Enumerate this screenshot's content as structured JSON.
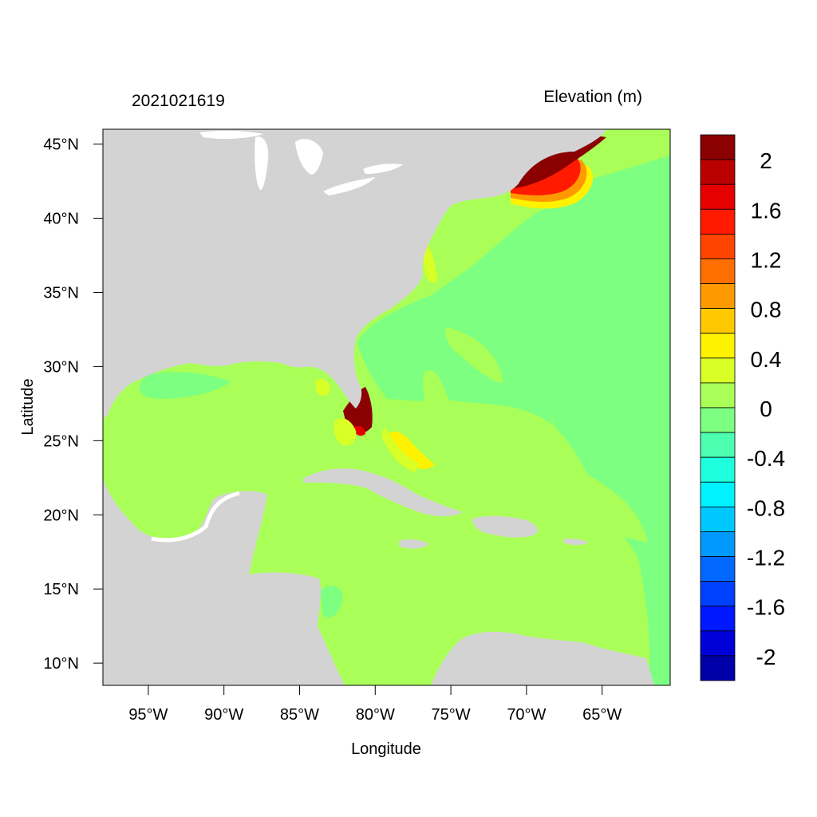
{
  "map": {
    "left_title": "2021021619",
    "right_title": "Elevation (m)",
    "xlabel": "Longitude",
    "ylabel": "Latitude",
    "x_ticks": [
      "95°W",
      "90°W",
      "85°W",
      "80°W",
      "75°W",
      "70°W",
      "65°W"
    ],
    "x_tick_values": [
      -95,
      -90,
      -85,
      -80,
      -75,
      -70,
      -65
    ],
    "y_ticks": [
      "45°N",
      "40°N",
      "35°N",
      "30°N",
      "25°N",
      "20°N",
      "15°N",
      "10°N"
    ],
    "y_tick_values": [
      45,
      40,
      35,
      30,
      25,
      20,
      15,
      10
    ],
    "lon_range": [
      -98,
      -60.5
    ],
    "lat_range": [
      8.5,
      46
    ],
    "land_color": "#d3d3d3",
    "ocean_base_color": "#a9ff57"
  },
  "colorbar": {
    "label_values": [
      "2",
      "1.6",
      "1.2",
      "0.8",
      "0.4",
      "0",
      "-0.4",
      "-0.8",
      "-1.2",
      "-1.6",
      "-2"
    ],
    "colors_top_to_bottom": [
      "#8b0000",
      "#bb0000",
      "#e60000",
      "#ff1a00",
      "#ff4400",
      "#ff6e00",
      "#ff9900",
      "#ffc800",
      "#fff200",
      "#d8ff26",
      "#a9ff57",
      "#7dff82",
      "#4dffb0",
      "#1effdd",
      "#00f2ff",
      "#00c8ff",
      "#009aff",
      "#0068ff",
      "#0040ff",
      "#0018ff",
      "#0000d8",
      "#0000a8"
    ]
  }
}
